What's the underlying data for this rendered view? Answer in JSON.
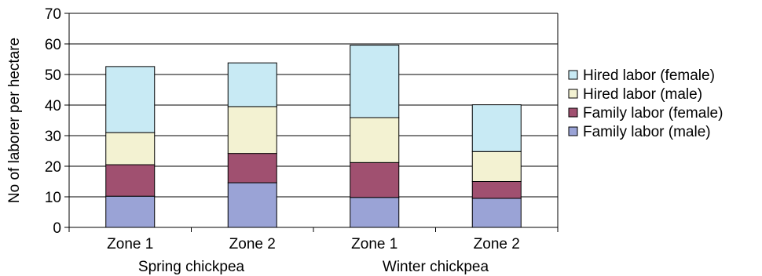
{
  "chart_data": {
    "type": "bar",
    "stacked": true,
    "ylabel": "No of laborer per hectare",
    "xlabel": "",
    "ylim": [
      0,
      70
    ],
    "yticks": [
      0,
      10,
      20,
      30,
      40,
      50,
      60,
      70
    ],
    "categories": [
      "Zone 1",
      "Zone 2",
      "Zone 1",
      "Zone 2"
    ],
    "groups": [
      {
        "label": "Spring chickpea",
        "categories": [
          0,
          1
        ]
      },
      {
        "label": "Winter chickpea",
        "categories": [
          2,
          3
        ]
      }
    ],
    "grid": true,
    "legend_position": "right",
    "series": [
      {
        "name": "Family labor (male)",
        "color": "#9AA3D6",
        "values": [
          10.2,
          14.6,
          9.8,
          9.5
        ]
      },
      {
        "name": "Family labor (female)",
        "color": "#A05070",
        "values": [
          10.3,
          9.6,
          11.4,
          5.5
        ]
      },
      {
        "name": "Hired labor (male)",
        "color": "#F3F2D2",
        "values": [
          10.5,
          15.3,
          14.7,
          9.8
        ]
      },
      {
        "name": "Hired labor (female)",
        "color": "#C8EAF4",
        "values": [
          21.6,
          14.3,
          23.7,
          15.3
        ]
      }
    ]
  }
}
